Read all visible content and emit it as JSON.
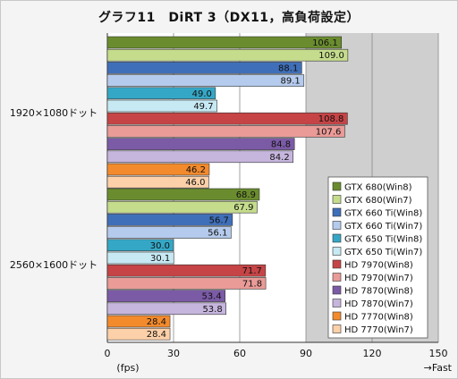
{
  "title": "グラフ11　DiRT 3（DX11，高負荷設定）",
  "chart_data": {
    "type": "bar",
    "orientation": "horizontal",
    "title": "グラフ11　DiRT 3（DX11，高負荷設定）",
    "categories": [
      "1920×1080ドット",
      "2560×1600ドット"
    ],
    "series": [
      {
        "name": "GTX 680(Win8)",
        "values": [
          106.1,
          68.9
        ],
        "color": "#6a8c2e"
      },
      {
        "name": "GTX 680(Win7)",
        "values": [
          109.0,
          67.9
        ],
        "color": "#c5dc8c"
      },
      {
        "name": "GTX 660 Ti(Win8)",
        "values": [
          88.1,
          56.7
        ],
        "color": "#3f6fb8"
      },
      {
        "name": "GTX 660 Ti(Win7)",
        "values": [
          89.1,
          56.1
        ],
        "color": "#b5cbed"
      },
      {
        "name": "GTX 650 Ti(Win8)",
        "values": [
          49.0,
          30.0
        ],
        "color": "#35a7c6"
      },
      {
        "name": "GTX 650 Ti(Win7)",
        "values": [
          49.7,
          30.1
        ],
        "color": "#c6e9f3"
      },
      {
        "name": "HD 7970(Win8)",
        "values": [
          108.8,
          71.7
        ],
        "color": "#c64446"
      },
      {
        "name": "HD 7970(Win7)",
        "values": [
          107.6,
          71.8
        ],
        "color": "#ea9a97"
      },
      {
        "name": "HD 7870(Win8)",
        "values": [
          84.8,
          53.4
        ],
        "color": "#7b5aa6"
      },
      {
        "name": "HD 7870(Win7)",
        "values": [
          84.2,
          53.8
        ],
        "color": "#c6b5dd"
      },
      {
        "name": "HD 7770(Win8)",
        "values": [
          46.2,
          28.4
        ],
        "color": "#f38a2c"
      },
      {
        "name": "HD 7770(Win7)",
        "values": [
          46.0,
          28.4
        ],
        "color": "#fcd0a8"
      }
    ],
    "xlim": [
      0,
      150
    ],
    "xticks": [
      "0",
      "30",
      "60",
      "90",
      "120",
      "150"
    ],
    "xlabel": "(fps)",
    "direction_label": "→Fast",
    "grid": true,
    "legend_position": "bottom-right"
  }
}
